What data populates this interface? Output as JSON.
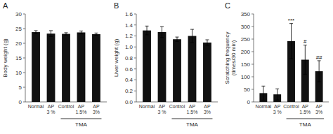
{
  "chart_data": [
    {
      "type": "bar",
      "title": "A",
      "ylabel": "Body weight (g)",
      "xlabel": "TMA",
      "categories": [
        "Normal",
        "AP\n3 %",
        "Control",
        "AP\n1.5%",
        "AP\n3%"
      ],
      "values": [
        23.8,
        23.3,
        23.2,
        23.7,
        23.1
      ],
      "errors": [
        0.5,
        1.0,
        0.4,
        0.5,
        0.4
      ],
      "color": "#111111",
      "ylim": [
        0,
        30
      ],
      "yticks": [
        0,
        5,
        10,
        15,
        20,
        25,
        30
      ]
    },
    {
      "type": "bar",
      "title": "B",
      "ylabel": "Liver weight (g)",
      "xlabel": "TMA",
      "categories": [
        "Normal",
        "AP\n3 %",
        "Control",
        "AP\n1.5%",
        "AP\n3%"
      ],
      "values": [
        1.3,
        1.27,
        1.14,
        1.2,
        1.08
      ],
      "errors": [
        0.08,
        0.1,
        0.04,
        0.12,
        0.05
      ],
      "color": "#111111",
      "ylim": [
        0.0,
        1.6
      ],
      "yticks": [
        {
          "value": 0,
          "label": "0.0"
        },
        0.2,
        0.4,
        0.6,
        0.8,
        {
          "value": 1,
          "label": "1.0"
        },
        1.2,
        1.4,
        1.6
      ]
    },
    {
      "type": "bar",
      "title": "C",
      "ylabel": "Scratching frequency\n(times/30 min)",
      "xlabel": "TMA",
      "categories": [
        "Normal",
        "AP\n3 %",
        "Control",
        "AP\n1.5%",
        "AP\n3%"
      ],
      "values": [
        35,
        30,
        242,
        168,
        122
      ],
      "errors": [
        28,
        22,
        70,
        58,
        42
      ],
      "color": "#111111",
      "ylim": [
        0,
        350
      ],
      "yticks": [
        0,
        50,
        100,
        150,
        200,
        250,
        300,
        350
      ],
      "annotations": [
        {
          "text": "***",
          "x": "Control",
          "y": 318
        },
        {
          "text": "#",
          "x": "AP\n1.5%",
          "y": 232
        },
        {
          "text": "##",
          "x": "AP\n3%",
          "y": 170
        }
      ]
    }
  ]
}
